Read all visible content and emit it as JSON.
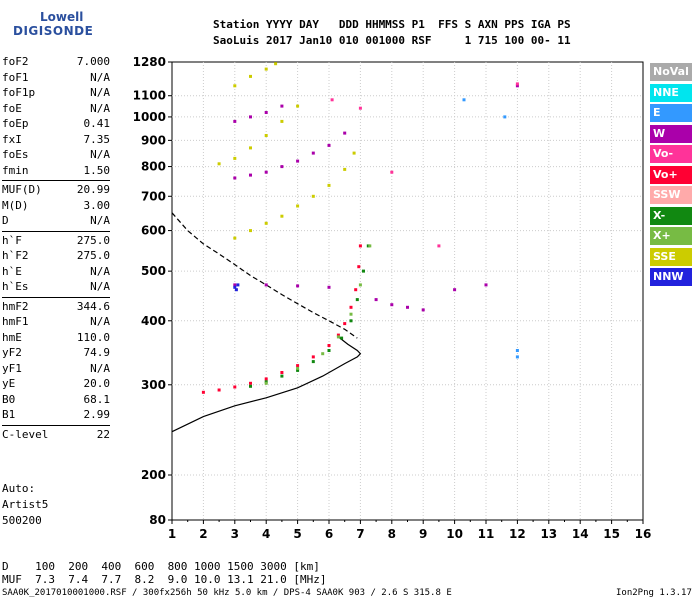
{
  "logo": {
    "line1": "Lowell",
    "line2": "DIGISONDE"
  },
  "header": {
    "line1": "Station YYYY DAY   DDD HHMMSS P1  FFS S AXN PPS IGA PS",
    "line2": "SaoLuis 2017 Jan10 010 001000 RSF     1 715 100 00- 11"
  },
  "params": [
    {
      "name": "foF2",
      "value": "7.000"
    },
    {
      "name": "foF1",
      "value": "N/A"
    },
    {
      "name": "foF1p",
      "value": "N/A"
    },
    {
      "name": "foE",
      "value": "N/A"
    },
    {
      "name": "foEp",
      "value": "0.41"
    },
    {
      "name": "fxI",
      "value": "7.35"
    },
    {
      "name": "foEs",
      "value": "N/A"
    },
    {
      "name": "fmin",
      "value": "1.50"
    },
    {
      "name": "MUF(D)",
      "value": "20.99"
    },
    {
      "name": "M(D)",
      "value": "3.00"
    },
    {
      "name": "D",
      "value": "N/A"
    },
    {
      "name": "h`F",
      "value": "275.0"
    },
    {
      "name": "h`F2",
      "value": "275.0"
    },
    {
      "name": "h`E",
      "value": "N/A"
    },
    {
      "name": "h`Es",
      "value": "N/A"
    },
    {
      "name": "hmF2",
      "value": "344.6"
    },
    {
      "name": "hmF1",
      "value": "N/A"
    },
    {
      "name": "hmE",
      "value": "110.0"
    },
    {
      "name": "yF2",
      "value": "74.9"
    },
    {
      "name": "yF1",
      "value": "N/A"
    },
    {
      "name": "yE",
      "value": "20.0"
    },
    {
      "name": "B0",
      "value": "68.1"
    },
    {
      "name": "B1",
      "value": "2.99"
    },
    {
      "name": "C-level",
      "value": "22"
    }
  ],
  "auto": {
    "l1": "Auto:",
    "l2": "Artist5",
    "l3": "500200"
  },
  "legend": [
    {
      "label": "NoVal",
      "color": "#aaaaaa"
    },
    {
      "label": "NNE",
      "color": "#00e5ee"
    },
    {
      "label": "E",
      "color": "#3399ff"
    },
    {
      "label": "W",
      "color": "#aa00aa"
    },
    {
      "label": "Vo-",
      "color": "#ff3399"
    },
    {
      "label": "Vo+",
      "color": "#ff0033"
    },
    {
      "label": "SSW",
      "color": "#ffaaaa"
    },
    {
      "label": "X-",
      "color": "#118811"
    },
    {
      "label": "X+",
      "color": "#77bb44"
    },
    {
      "label": "SSE",
      "color": "#cccc00"
    },
    {
      "label": "NNW",
      "color": "#2222dd"
    }
  ],
  "footer": {
    "d_line": "D    100  200  400  600  800 1000 1500 3000 [km]",
    "muf_line": "MUF  7.3  7.4  7.7  8.2  9.0 10.0 13.1 21.0 [MHz]",
    "file_line": "SAA0K_2017010001000.RSF / 300fx256h 50 kHz 5.0 km / DPS-4 SAA0K 903 / 2.6 S 315.8 E",
    "version": "Ion2Png 1.3.17"
  },
  "chart_data": {
    "type": "scatter",
    "xlim": [
      1,
      16
    ],
    "ylim": [
      80,
      1280
    ],
    "x_ticks": [
      "1",
      "2",
      "3",
      "4",
      "5",
      "6",
      "7",
      "8",
      "9",
      "10",
      "11",
      "12",
      "13",
      "14",
      "15",
      "16"
    ],
    "y_ticks": [
      {
        "v": 80,
        "label": "80"
      },
      {
        "v": 200,
        "label": "200"
      },
      {
        "v": 300,
        "label": "300"
      },
      {
        "v": 400,
        "label": "400"
      },
      {
        "v": 500,
        "label": "500"
      },
      {
        "v": 600,
        "label": "600"
      },
      {
        "v": 700,
        "label": "700"
      },
      {
        "v": 800,
        "label": "800"
      },
      {
        "v": 900,
        "label": "900"
      },
      {
        "v": 1000,
        "label": "1000"
      },
      {
        "v": 1100,
        "label": "1100"
      },
      {
        "v": 1280,
        "label": "1280"
      }
    ],
    "y_scale": "piecewise: 80-200 linear, 200-1280 log-like (ionogram height axis)",
    "grid": true,
    "series": [
      {
        "color": "#ff0033",
        "points": [
          [
            2.0,
            290
          ],
          [
            2.5,
            293
          ],
          [
            3.0,
            297
          ],
          [
            3.5,
            302
          ],
          [
            4.0,
            308
          ],
          [
            4.5,
            317
          ],
          [
            5.0,
            327
          ],
          [
            5.5,
            340
          ],
          [
            6.0,
            358
          ],
          [
            6.3,
            375
          ],
          [
            6.5,
            395
          ],
          [
            6.7,
            425
          ],
          [
            6.85,
            460
          ],
          [
            6.95,
            510
          ],
          [
            7.0,
            560
          ]
        ]
      },
      {
        "color": "#118811",
        "points": [
          [
            3.5,
            298
          ],
          [
            4.0,
            304
          ],
          [
            4.5,
            312
          ],
          [
            5.0,
            320
          ],
          [
            5.5,
            333
          ],
          [
            6.0,
            350
          ],
          [
            6.4,
            370
          ],
          [
            6.7,
            400
          ],
          [
            6.9,
            440
          ],
          [
            7.1,
            500
          ],
          [
            7.25,
            560
          ]
        ]
      },
      {
        "color": "#77bb44",
        "points": [
          [
            4.0,
            302
          ],
          [
            5.0,
            323
          ],
          [
            5.8,
            345
          ],
          [
            6.3,
            372
          ],
          [
            6.7,
            412
          ],
          [
            7.0,
            470
          ],
          [
            7.3,
            560
          ]
        ]
      },
      {
        "color": "#cccc00",
        "points": [
          [
            2.5,
            810
          ],
          [
            3.0,
            830
          ],
          [
            3.5,
            870
          ],
          [
            4.0,
            920
          ],
          [
            4.5,
            980
          ],
          [
            5.0,
            1050
          ],
          [
            3.0,
            580
          ],
          [
            3.5,
            600
          ],
          [
            4.0,
            620
          ],
          [
            4.5,
            640
          ],
          [
            5.0,
            670
          ],
          [
            5.5,
            700
          ],
          [
            6.0,
            735
          ],
          [
            6.5,
            790
          ],
          [
            6.8,
            850
          ],
          [
            3.0,
            1150
          ],
          [
            3.5,
            1200
          ],
          [
            4.0,
            1240
          ],
          [
            4.3,
            1270
          ]
        ]
      },
      {
        "color": "#aa00aa",
        "points": [
          [
            3.0,
            760
          ],
          [
            3.5,
            770
          ],
          [
            4.0,
            780
          ],
          [
            4.5,
            800
          ],
          [
            5.0,
            820
          ],
          [
            5.5,
            850
          ],
          [
            6.0,
            880
          ],
          [
            6.5,
            930
          ],
          [
            3.0,
            470
          ],
          [
            4.0,
            470
          ],
          [
            5.0,
            468
          ],
          [
            6.0,
            465
          ],
          [
            7.5,
            440
          ],
          [
            8.0,
            430
          ],
          [
            8.5,
            425
          ],
          [
            9.0,
            420
          ],
          [
            10.0,
            460
          ],
          [
            11.0,
            470
          ],
          [
            12.0,
            1150
          ],
          [
            3.0,
            980
          ],
          [
            3.5,
            1000
          ],
          [
            4.0,
            1020
          ],
          [
            4.5,
            1050
          ]
        ]
      },
      {
        "color": "#2222dd",
        "points": [
          [
            3.0,
            465
          ],
          [
            3.1,
            470
          ],
          [
            3.05,
            460
          ]
        ]
      },
      {
        "color": "#3399ff",
        "points": [
          [
            10.3,
            1080
          ],
          [
            11.6,
            1000
          ],
          [
            12.0,
            350
          ],
          [
            12.0,
            340
          ]
        ]
      },
      {
        "color": "#ff3399",
        "points": [
          [
            6.1,
            1080
          ],
          [
            7.0,
            1040
          ],
          [
            12.0,
            1160
          ],
          [
            8.0,
            780
          ],
          [
            9.5,
            560
          ]
        ]
      }
    ],
    "curves": [
      {
        "name": "",
        "style": "solid",
        "points": [
          [
            1.0,
            243
          ],
          [
            2.0,
            260
          ],
          [
            3.0,
            273
          ],
          [
            4.0,
            283
          ],
          [
            5.0,
            296
          ],
          [
            5.8,
            312
          ],
          [
            6.5,
            330
          ],
          [
            6.9,
            340
          ],
          [
            7.0,
            345
          ],
          [
            6.9,
            350
          ],
          [
            6.6,
            360
          ],
          [
            6.3,
            372
          ]
        ]
      },
      {
        "name": "",
        "style": "dashed",
        "points": [
          [
            1.0,
            650
          ],
          [
            1.5,
            600
          ],
          [
            2.0,
            565
          ],
          [
            2.5,
            540
          ],
          [
            3.0,
            515
          ],
          [
            3.5,
            490
          ],
          [
            4.0,
            470
          ],
          [
            4.5,
            450
          ],
          [
            5.0,
            432
          ],
          [
            5.5,
            415
          ],
          [
            6.0,
            400
          ],
          [
            6.5,
            385
          ],
          [
            6.9,
            370
          ]
        ]
      }
    ]
  }
}
